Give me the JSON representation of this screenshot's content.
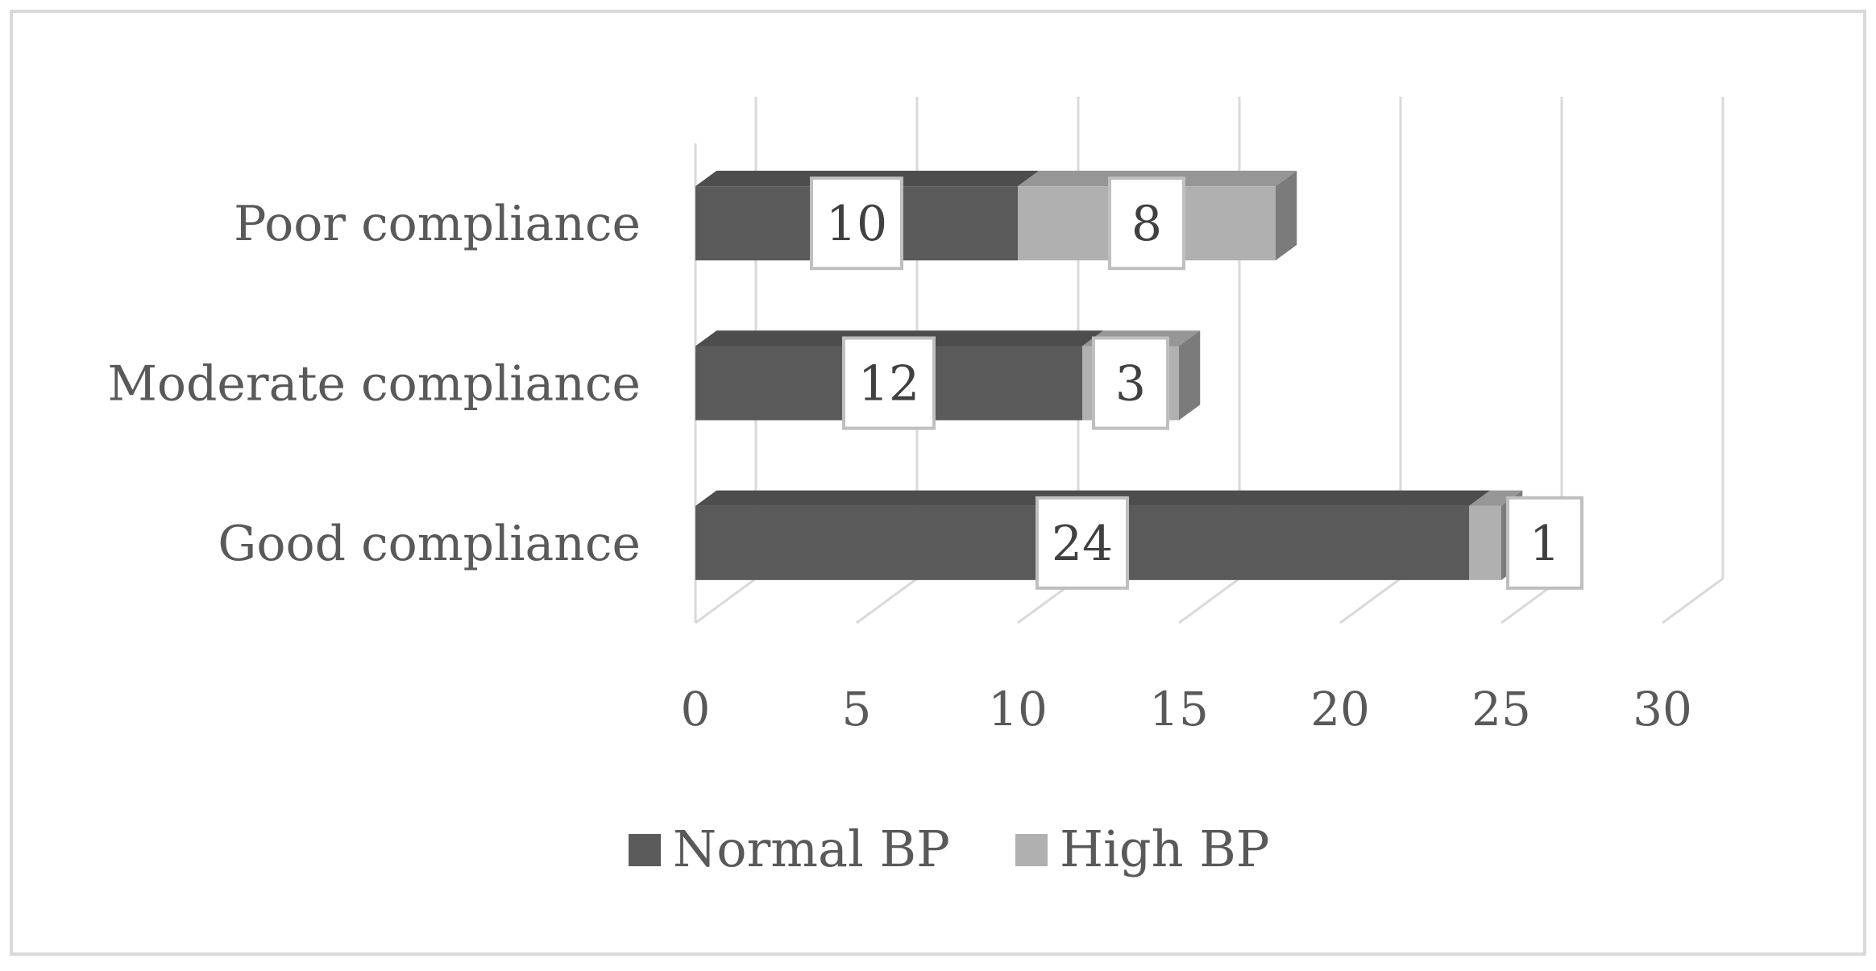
{
  "chart_data": {
    "type": "bar",
    "orientation": "horizontal",
    "stacked": true,
    "style": "3d",
    "categories": [
      "Poor compliance",
      "Moderate compliance",
      "Good compliance"
    ],
    "series": [
      {
        "name": "Normal BP",
        "color": "#5a5a5a",
        "values": [
          10,
          12,
          24
        ]
      },
      {
        "name": "High BP",
        "color": "#b0b0b0",
        "values": [
          8,
          3,
          1
        ]
      }
    ],
    "xlim": [
      0,
      30
    ],
    "xticks": [
      "0",
      "5",
      "10",
      "15",
      "20",
      "25",
      "30"
    ],
    "grid": true,
    "legend": "bottom",
    "data_labels": true
  }
}
